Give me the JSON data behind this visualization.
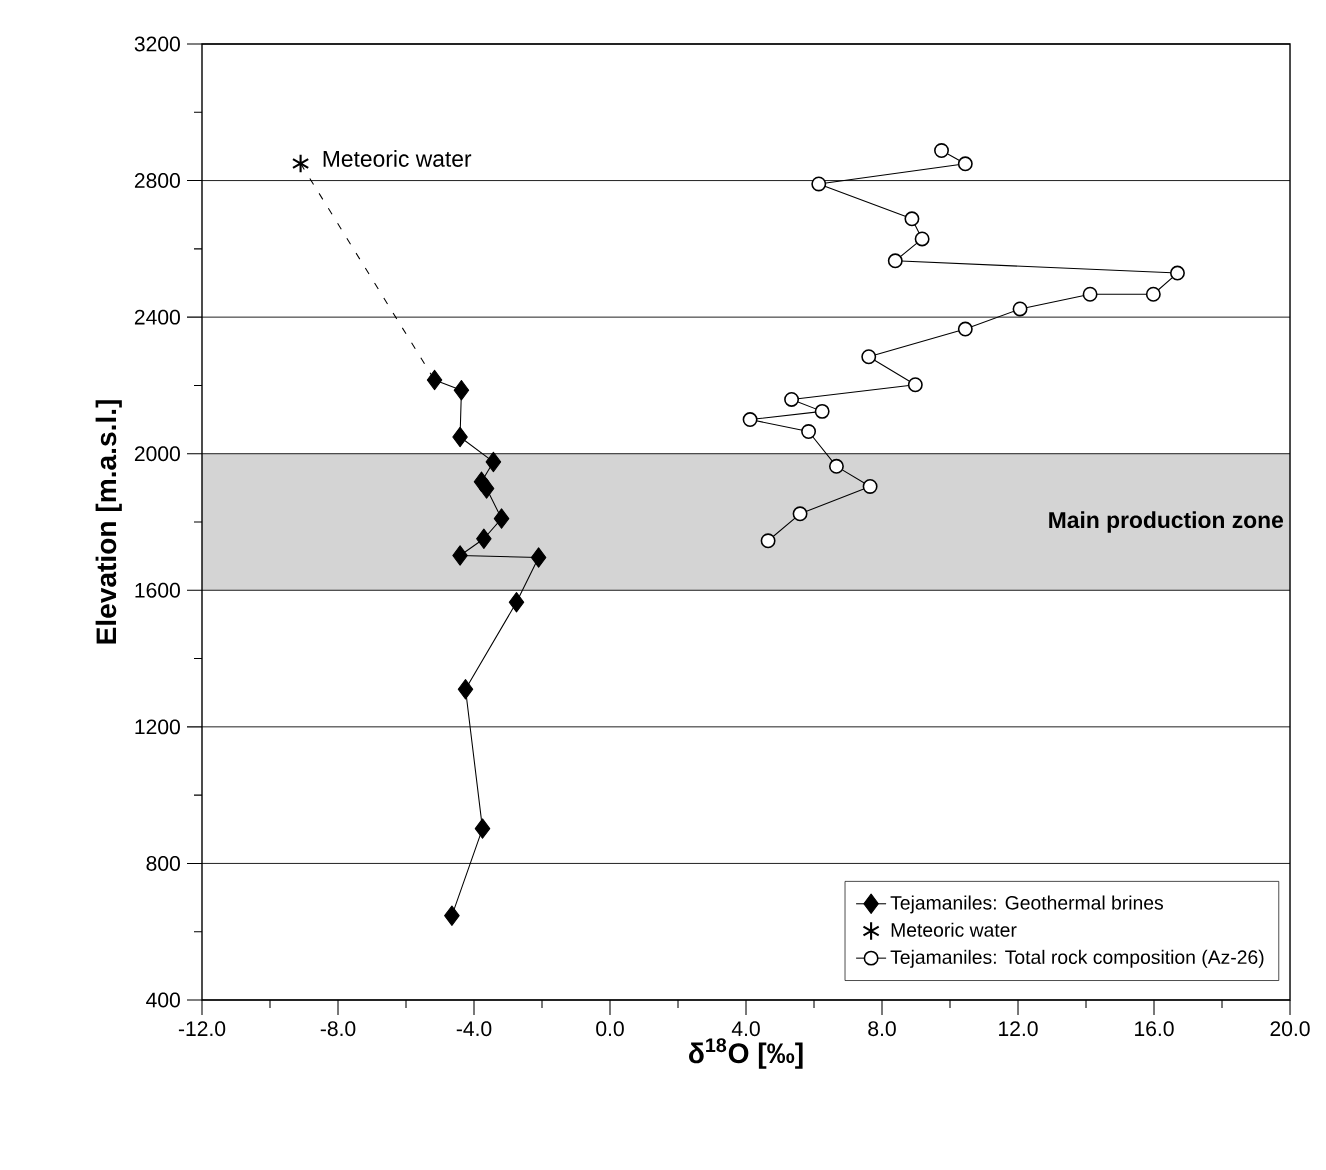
{
  "chart_data": {
    "type": "line",
    "xlabel": "δ$^{18}$O [‰]",
    "ylabel": "Elevation [m.a.s.l.]",
    "xlim": [
      -12,
      20
    ],
    "ylim": [
      400,
      3200
    ],
    "xticks": [
      {
        "value": -12,
        "label": "-12.0"
      },
      {
        "value": -10,
        "label": null
      },
      {
        "value": -8,
        "label": "-8.0"
      },
      {
        "value": -6,
        "label": null
      },
      {
        "value": -4,
        "label": "-4.0"
      },
      {
        "value": -2,
        "label": null
      },
      {
        "value": 0,
        "label": "0.0"
      },
      {
        "value": 2,
        "label": null
      },
      {
        "value": 4,
        "label": "4.0"
      },
      {
        "value": 6,
        "label": null
      },
      {
        "value": 8,
        "label": "8.0"
      },
      {
        "value": 10,
        "label": null
      },
      {
        "value": 12,
        "label": "12.0"
      },
      {
        "value": 14,
        "label": null
      },
      {
        "value": 16,
        "label": "16.0"
      },
      {
        "value": 18,
        "label": null
      },
      {
        "value": 20,
        "label": "20.0"
      }
    ],
    "yticks": [
      400,
      {
        "value": 600,
        "label": null
      },
      800,
      {
        "value": 1000,
        "label": null
      },
      1200,
      {
        "value": 1400,
        "label": null
      },
      1600,
      {
        "value": 1800,
        "label": null
      },
      2000,
      {
        "value": 2200,
        "label": null
      },
      2400,
      {
        "value": 2600,
        "label": null
      },
      2800,
      {
        "value": 3000,
        "label": null
      },
      3200
    ],
    "grid": "y",
    "legend": "bottom right",
    "bands": [
      {
        "axis": "y",
        "from": 1600,
        "to": 2000,
        "label": "Main production zone",
        "color": "#d4d4d4"
      }
    ],
    "annotations": [
      {
        "text": "Meteoric water",
        "x": -9.1,
        "y": 2850
      }
    ],
    "series": [
      {
        "name": "Tejamaniles: Geothermal brines",
        "color": "#000000",
        "marker": "diamond",
        "line_style": "solid",
        "x": [
          -5.16,
          -4.37,
          -4.41,
          -3.43,
          -3.78,
          -3.63,
          -3.19,
          -3.71,
          -4.41,
          -2.1,
          -2.75,
          -4.25,
          -3.75,
          -4.65
        ],
        "values": [
          2216,
          2186,
          2049,
          1976,
          1918,
          1898,
          1810,
          1751,
          1702,
          1696,
          1565,
          1310,
          902,
          647
        ]
      },
      {
        "name": "Meteoric water",
        "color": "#000000",
        "marker": "cross",
        "type": "scatter",
        "x": [
          -9.1
        ],
        "values": [
          2850
        ]
      },
      {
        "name": "Tejamaniles: Total rock composition (Az-26)",
        "color": "#000000",
        "marker": "circle",
        "line_style": "solid",
        "x": [
          9.75,
          10.45,
          6.14,
          8.88,
          9.18,
          8.39,
          16.69,
          15.98,
          14.12,
          12.06,
          10.45,
          7.61,
          8.98,
          5.34,
          6.24,
          4.12,
          5.84,
          6.66,
          7.65,
          5.59,
          4.65
        ],
        "values": [
          2888,
          2849,
          2790,
          2688,
          2629,
          2565,
          2529,
          2467,
          2467,
          2424,
          2365,
          2284,
          2202,
          2159,
          2124,
          2100,
          2065,
          1963,
          1904,
          1824,
          1745
        ]
      },
      {
        "color": "#000000",
        "marker": "none",
        "line_style": "dashed",
        "x": [
          -9.1,
          -5.16
        ],
        "values": [
          2850,
          2216
        ]
      }
    ]
  }
}
